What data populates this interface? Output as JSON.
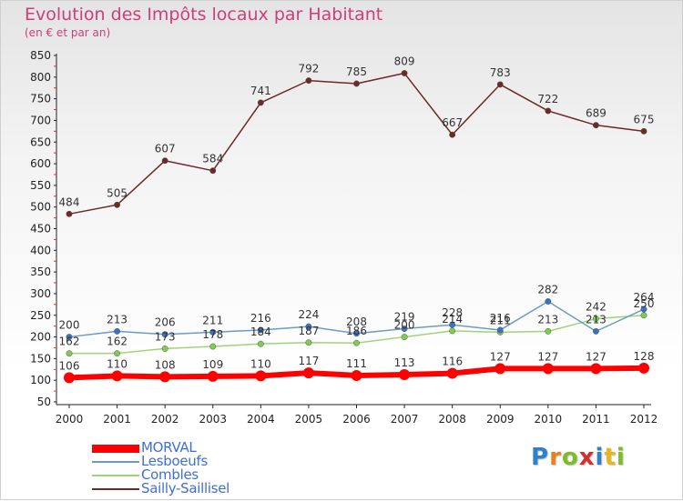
{
  "title": "Evolution des Impôts locaux par Habitant",
  "subtitle": "(en € et par an)",
  "logo": {
    "text": "Proxiti",
    "letters": [
      {
        "ch": "P",
        "color": "#2f7fd0"
      },
      {
        "ch": "r",
        "color": "#e8811c"
      },
      {
        "ch": "o",
        "color": "#7dbd2a"
      },
      {
        "ch": "x",
        "color": "#d62d2d"
      },
      {
        "ch": "i",
        "color": "#2f7fd0"
      },
      {
        "ch": "t",
        "color": "#e8b51c"
      },
      {
        "ch": "i",
        "color": "#7dbd2a"
      }
    ]
  },
  "chart_data": {
    "type": "line",
    "x": [
      "2000",
      "2001",
      "2002",
      "2003",
      "2004",
      "2005",
      "2006",
      "2007",
      "2008",
      "2009",
      "2010",
      "2011",
      "2012"
    ],
    "ylim": [
      50,
      850
    ],
    "yticks": [
      50,
      100,
      150,
      200,
      250,
      300,
      350,
      400,
      450,
      500,
      550,
      600,
      650,
      700,
      750,
      800,
      850
    ],
    "grid": false,
    "legend": "bottom-left",
    "series": [
      {
        "name": "MORVAL",
        "color": "#ff0000",
        "point_color": "#ff0000",
        "width": 6,
        "values": [
          106,
          110,
          108,
          109,
          110,
          117,
          111,
          113,
          116,
          127,
          127,
          127,
          128
        ]
      },
      {
        "name": "Lesboeufs",
        "color": "#6a9cc8",
        "point_color": "#3673c2",
        "width": 1.5,
        "values": [
          200,
          213,
          206,
          211,
          216,
          224,
          208,
          219,
          228,
          216,
          282,
          213,
          264
        ]
      },
      {
        "name": "Combles",
        "color": "#9fd37a",
        "point_color": "#80cc4e",
        "width": 1.5,
        "values": [
          162,
          162,
          173,
          178,
          184,
          187,
          186,
          200,
          214,
          211,
          213,
          242,
          250
        ]
      },
      {
        "name": "Sailly-Saillisel",
        "color": "#6e2828",
        "point_color": "#6e2828",
        "width": 1.5,
        "values": [
          484,
          505,
          607,
          584,
          741,
          792,
          785,
          809,
          667,
          783,
          722,
          689,
          675
        ]
      }
    ]
  }
}
